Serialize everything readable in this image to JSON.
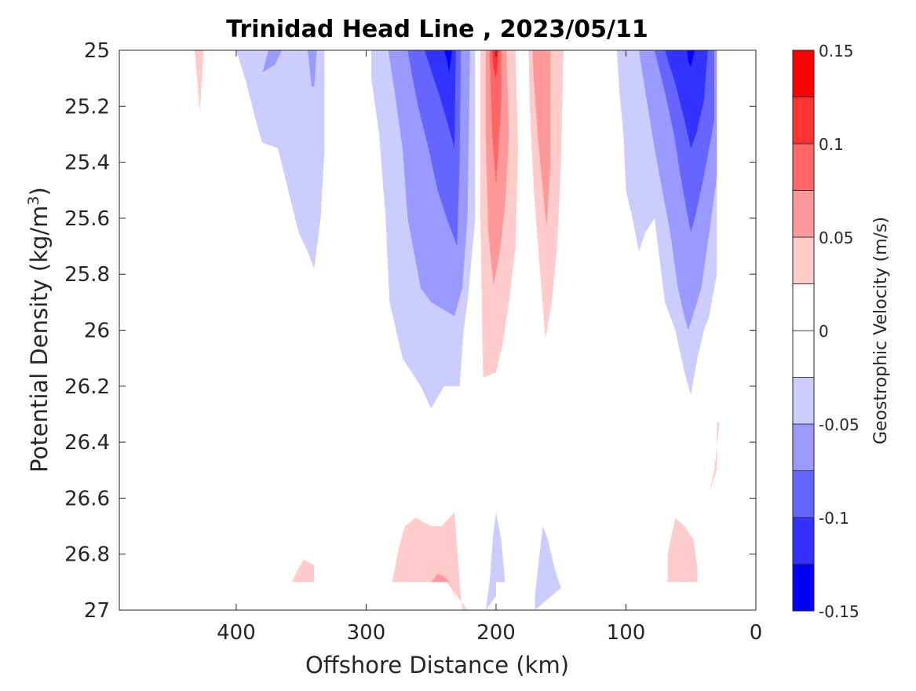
{
  "chart_data": {
    "type": "contour",
    "title": "Trinidad Head Line , 2023/05/11",
    "xlabel": "Offshore Distance (km)",
    "ylabel_prefix": "Potential Density (kg/m",
    "ylabel_sup": "3",
    "ylabel_suffix": ")",
    "x_reversed": true,
    "xlim": [
      0,
      490
    ],
    "ylim": [
      25,
      27
    ],
    "y_reversed": true,
    "x_ticks": [
      {
        "value": 400,
        "label": "400"
      },
      {
        "value": 300,
        "label": "300"
      },
      {
        "value": 200,
        "label": "200"
      },
      {
        "value": 100,
        "label": "100"
      },
      {
        "value": 0,
        "label": "0"
      }
    ],
    "y_ticks": [
      {
        "value": 25,
        "label": "25"
      },
      {
        "value": 25.2,
        "label": "25.2"
      },
      {
        "value": 25.4,
        "label": "25.4"
      },
      {
        "value": 25.6,
        "label": "25.6"
      },
      {
        "value": 25.8,
        "label": "25.8"
      },
      {
        "value": 26,
        "label": "26"
      },
      {
        "value": 26.2,
        "label": "26.2"
      },
      {
        "value": 26.4,
        "label": "26.4"
      },
      {
        "value": 26.6,
        "label": "26.6"
      },
      {
        "value": 26.8,
        "label": "26.8"
      },
      {
        "value": 27,
        "label": "27"
      }
    ],
    "colorbar": {
      "label": "Geostrophic Velocity (m/s)",
      "range": [
        -0.15,
        0.15
      ],
      "levels": [
        -0.15,
        -0.125,
        -0.1,
        -0.075,
        -0.05,
        -0.025,
        0,
        0.025,
        0.05,
        0.075,
        0.1,
        0.125,
        0.15
      ],
      "colors": [
        "#0000ff",
        "#3333ff",
        "#6666ff",
        "#9999ff",
        "#ccccff",
        "#ffffff",
        "#ffffff",
        "#ffcccc",
        "#ff9999",
        "#ff6666",
        "#ff3333",
        "#ff0000"
      ],
      "ticks": [
        {
          "value": 0.15,
          "label": "0.15"
        },
        {
          "value": 0.1,
          "label": "0.1"
        },
        {
          "value": 0.05,
          "label": "0.05"
        },
        {
          "value": 0,
          "label": "0"
        },
        {
          "value": -0.05,
          "label": "-0.05"
        },
        {
          "value": -0.1,
          "label": "-0.1"
        },
        {
          "value": -0.15,
          "label": "-0.15"
        }
      ]
    },
    "regions": [
      {
        "level": 0.05,
        "color": "#ffcccc",
        "points": [
          [
            432,
            25
          ],
          [
            425,
            25
          ],
          [
            428,
            25.22
          ]
        ]
      },
      {
        "level": -0.05,
        "color": "#ccccff",
        "points": [
          [
            400,
            25
          ],
          [
            332,
            25
          ],
          [
            332,
            25.35
          ],
          [
            335,
            25.6
          ],
          [
            340,
            25.78
          ],
          [
            345,
            25.72
          ],
          [
            352,
            25.65
          ],
          [
            360,
            25.5
          ],
          [
            368,
            25.35
          ],
          [
            380,
            25.33
          ],
          [
            385,
            25.25
          ],
          [
            392,
            25.12
          ]
        ]
      },
      {
        "level": -0.075,
        "color": "#9999ff",
        "points": [
          [
            375,
            25
          ],
          [
            365,
            25
          ],
          [
            370,
            25.05
          ],
          [
            380,
            25.08
          ]
        ]
      },
      {
        "level": -0.075,
        "color": "#9999ff",
        "points": [
          [
            345,
            25
          ],
          [
            338,
            25
          ],
          [
            340,
            25.13
          ],
          [
            342,
            25.13
          ]
        ]
      },
      {
        "level": -0.05,
        "color": "#ccccff",
        "points": [
          [
            296,
            25
          ],
          [
            216,
            25
          ],
          [
            216,
            25.6
          ],
          [
            222,
            25.9
          ],
          [
            225,
            26
          ],
          [
            228,
            26.2
          ],
          [
            240,
            26.2
          ],
          [
            250,
            26.28
          ],
          [
            258,
            26.2
          ],
          [
            272,
            26.1
          ],
          [
            282,
            25.9
          ],
          [
            285,
            25.6
          ],
          [
            290,
            25.3
          ],
          [
            296,
            25.1
          ]
        ]
      },
      {
        "level": -0.075,
        "color": "#9999ff",
        "points": [
          [
            283,
            25
          ],
          [
            220,
            25
          ],
          [
            222,
            25.6
          ],
          [
            226,
            25.85
          ],
          [
            232,
            25.95
          ],
          [
            250,
            25.9
          ],
          [
            258,
            25.85
          ],
          [
            268,
            25.6
          ],
          [
            272,
            25.35
          ],
          [
            278,
            25.15
          ]
        ]
      },
      {
        "level": -0.1,
        "color": "#6666ff",
        "points": [
          [
            268,
            25
          ],
          [
            227,
            25
          ],
          [
            228,
            25.4
          ],
          [
            230,
            25.7
          ],
          [
            238,
            25.6
          ],
          [
            245,
            25.5
          ],
          [
            252,
            25.35
          ],
          [
            260,
            25.2
          ],
          [
            265,
            25.08
          ]
        ]
      },
      {
        "level": -0.125,
        "color": "#3333ff",
        "points": [
          [
            255,
            25
          ],
          [
            231,
            25
          ],
          [
            232,
            25.35
          ],
          [
            238,
            25.25
          ],
          [
            243,
            25.17
          ],
          [
            248,
            25.1
          ]
        ]
      },
      {
        "level": -0.15,
        "color": "#0000ff",
        "points": [
          [
            240,
            25
          ],
          [
            234,
            25
          ],
          [
            236,
            25.08
          ],
          [
            238,
            25.03
          ]
        ]
      },
      {
        "level": 0.05,
        "color": "#ffcccc",
        "points": [
          [
            212,
            25
          ],
          [
            185,
            25
          ],
          [
            183,
            25.35
          ],
          [
            185,
            25.7
          ],
          [
            190,
            25.9
          ],
          [
            195,
            26.05
          ],
          [
            200,
            26.15
          ],
          [
            210,
            26.17
          ],
          [
            212,
            25.6
          ]
        ]
      },
      {
        "level": 0.075,
        "color": "#ff9999",
        "points": [
          [
            208,
            25
          ],
          [
            192,
            25
          ],
          [
            190,
            25.3
          ],
          [
            193,
            25.55
          ],
          [
            197,
            25.72
          ],
          [
            202,
            25.84
          ],
          [
            206,
            25.65
          ],
          [
            208,
            25.3
          ]
        ]
      },
      {
        "level": 0.1,
        "color": "#ff6666",
        "points": [
          [
            205,
            25
          ],
          [
            196,
            25
          ],
          [
            196,
            25.2
          ],
          [
            200,
            25.48
          ],
          [
            203,
            25.3
          ]
        ]
      },
      {
        "level": 0.125,
        "color": "#ff3333",
        "points": [
          [
            203,
            25
          ],
          [
            198,
            25
          ],
          [
            200,
            25.1
          ],
          [
            202,
            25.06
          ]
        ]
      },
      {
        "level": 0.05,
        "color": "#ffcccc",
        "points": [
          [
            175,
            25
          ],
          [
            148,
            25
          ],
          [
            150,
            25.4
          ],
          [
            153,
            25.7
          ],
          [
            157,
            25.9
          ],
          [
            162,
            26.03
          ],
          [
            166,
            25.8
          ],
          [
            171,
            25.5
          ],
          [
            174,
            25.2
          ]
        ]
      },
      {
        "level": 0.075,
        "color": "#ff9999",
        "points": [
          [
            172,
            25
          ],
          [
            158,
            25
          ],
          [
            158,
            25.4
          ],
          [
            161,
            25.63
          ],
          [
            164,
            25.5
          ],
          [
            168,
            25.3
          ],
          [
            171,
            25.1
          ]
        ]
      },
      {
        "level": -0.05,
        "color": "#ccccff",
        "points": [
          [
            107,
            25
          ],
          [
            30,
            25
          ],
          [
            30,
            25.8
          ],
          [
            36,
            25.95
          ],
          [
            40,
            26
          ],
          [
            45,
            26.1
          ],
          [
            50,
            26.23
          ],
          [
            55,
            26.15
          ],
          [
            62,
            26
          ],
          [
            70,
            25.9
          ],
          [
            78,
            25.6
          ],
          [
            85,
            25.65
          ],
          [
            90,
            25.72
          ],
          [
            95,
            25.6
          ],
          [
            100,
            25.5
          ],
          [
            102,
            25.3
          ],
          [
            105,
            25.15
          ]
        ]
      },
      {
        "level": -0.075,
        "color": "#9999ff",
        "points": [
          [
            90,
            25
          ],
          [
            30,
            25
          ],
          [
            30,
            25.45
          ],
          [
            35,
            25.62
          ],
          [
            42,
            25.85
          ],
          [
            52,
            26
          ],
          [
            55,
            25.95
          ],
          [
            60,
            25.85
          ],
          [
            66,
            25.65
          ],
          [
            72,
            25.5
          ],
          [
            78,
            25.35
          ],
          [
            85,
            25.15
          ]
        ]
      },
      {
        "level": -0.1,
        "color": "#6666ff",
        "points": [
          [
            78,
            25
          ],
          [
            32,
            25
          ],
          [
            32,
            25.25
          ],
          [
            40,
            25.45
          ],
          [
            47,
            25.6
          ],
          [
            50,
            25.65
          ],
          [
            53,
            25.58
          ],
          [
            58,
            25.45
          ],
          [
            63,
            25.3
          ],
          [
            70,
            25.15
          ]
        ]
      },
      {
        "level": -0.125,
        "color": "#3333ff",
        "points": [
          [
            70,
            25
          ],
          [
            37,
            25
          ],
          [
            40,
            25.18
          ],
          [
            46,
            25.3
          ],
          [
            50,
            25.35
          ],
          [
            55,
            25.25
          ],
          [
            62,
            25.12
          ]
        ]
      },
      {
        "level": -0.15,
        "color": "#0000ff",
        "points": [
          [
            53,
            25
          ],
          [
            47,
            25
          ],
          [
            50,
            25.06
          ],
          [
            52,
            25.04
          ]
        ]
      },
      {
        "level": 0.05,
        "color": "#ffcccc",
        "points": [
          [
            30,
            26.33
          ],
          [
            28,
            26.33
          ],
          [
            32,
            26.5
          ],
          [
            36,
            26.58
          ],
          [
            30,
            26.5
          ]
        ]
      },
      {
        "level": 0.05,
        "color": "#ffcccc",
        "points": [
          [
            280,
            26.9
          ],
          [
            280,
            26.9
          ],
          [
            275,
            26.78
          ],
          [
            270,
            26.7
          ],
          [
            262,
            26.67
          ],
          [
            250,
            26.7
          ],
          [
            242,
            26.7
          ],
          [
            232,
            26.65
          ],
          [
            228,
            26.9
          ],
          [
            226,
            27
          ],
          [
            222,
            27
          ],
          [
            238,
            26.9
          ],
          [
            260,
            26.9
          ],
          [
            280,
            26.9
          ]
        ]
      },
      {
        "level": 0.075,
        "color": "#ff9999",
        "points": [
          [
            250,
            26.9
          ],
          [
            245,
            26.87
          ],
          [
            240,
            26.88
          ],
          [
            236,
            26.9
          ],
          [
            232,
            26.95
          ],
          [
            230,
            26.97
          ],
          [
            236,
            26.9
          ]
        ]
      },
      {
        "level": 0.05,
        "color": "#ffcccc",
        "points": [
          [
            357,
            26.9
          ],
          [
            340,
            26.9
          ],
          [
            340,
            26.84
          ],
          [
            348,
            26.82
          ],
          [
            352,
            26.85
          ]
        ]
      },
      {
        "level": 0.05,
        "color": "#ffcccc",
        "points": [
          [
            68,
            26.9
          ],
          [
            45,
            26.9
          ],
          [
            45,
            26.85
          ],
          [
            48,
            26.75
          ],
          [
            55,
            26.7
          ],
          [
            62,
            26.67
          ],
          [
            68,
            26.8
          ]
        ]
      },
      {
        "level": -0.05,
        "color": "#ccccff",
        "points": [
          [
            200,
            26.9
          ],
          [
            193,
            26.9
          ],
          [
            196,
            26.75
          ],
          [
            198,
            26.7
          ],
          [
            200,
            26.65
          ],
          [
            202,
            26.72
          ],
          [
            205,
            26.9
          ],
          [
            208,
            27
          ],
          [
            200,
            26.95
          ]
        ]
      },
      {
        "level": -0.05,
        "color": "#ccccff",
        "points": [
          [
            170,
            27
          ],
          [
            150,
            26.92
          ],
          [
            155,
            26.85
          ],
          [
            160,
            26.75
          ],
          [
            164,
            26.7
          ],
          [
            167,
            26.82
          ],
          [
            170,
            26.95
          ]
        ]
      }
    ]
  }
}
